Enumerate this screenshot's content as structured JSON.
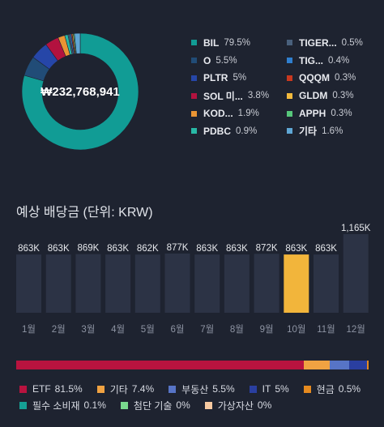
{
  "portfolio": {
    "total": "₩232,768,941"
  },
  "donut": [
    {
      "value": 79.5,
      "color": "#119c95"
    },
    {
      "value": 5.5,
      "color": "#214c77"
    },
    {
      "value": 5.0,
      "color": "#2646a8"
    },
    {
      "value": 3.8,
      "color": "#b3123f"
    },
    {
      "value": 1.9,
      "color": "#e99434"
    },
    {
      "value": 0.9,
      "color": "#28b8a5"
    },
    {
      "value": 0.5,
      "color": "#49607c"
    },
    {
      "value": 0.4,
      "color": "#2f7fcf"
    },
    {
      "value": 0.3,
      "color": "#c8381f"
    },
    {
      "value": 0.3,
      "color": "#f3ba3d"
    },
    {
      "value": 0.3,
      "color": "#57c77b"
    },
    {
      "value": 1.6,
      "color": "#5fa7d5"
    }
  ],
  "holdings": {
    "col1": [
      {
        "name": "BIL",
        "pct": "79.5%",
        "color": "#119c95"
      },
      {
        "name": "O",
        "pct": "5.5%",
        "color": "#214c77"
      },
      {
        "name": "PLTR",
        "pct": "5%",
        "color": "#2646a8"
      },
      {
        "name": "SOL 미...",
        "pct": "3.8%",
        "color": "#b3123f"
      },
      {
        "name": "KOD...",
        "pct": "1.9%",
        "color": "#e99434"
      },
      {
        "name": "PDBC",
        "pct": "0.9%",
        "color": "#28b8a5"
      }
    ],
    "col2": [
      {
        "name": "TIGER...",
        "pct": "0.5%",
        "color": "#49607c"
      },
      {
        "name": "TIG...",
        "pct": "0.4%",
        "color": "#2f7fcf"
      },
      {
        "name": "QQQM",
        "pct": "0.3%",
        "color": "#c8381f"
      },
      {
        "name": "GLDM",
        "pct": "0.3%",
        "color": "#f3ba3d"
      },
      {
        "name": "APPH",
        "pct": "0.3%",
        "color": "#57c77b"
      },
      {
        "name": "기타",
        "pct": "1.6%",
        "color": "#5fa7d5"
      }
    ]
  },
  "dividends": {
    "title": "예상 배당금 (단위: KRW)"
  },
  "chart_data": {
    "type": "bar",
    "title": "예상 배당금 (단위: KRW)",
    "categories": [
      "1월",
      "2월",
      "3월",
      "4월",
      "5월",
      "6월",
      "7월",
      "8월",
      "9월",
      "10월",
      "11월",
      "12월"
    ],
    "values": [
      863000,
      863000,
      869000,
      863000,
      862000,
      877000,
      863000,
      863000,
      872000,
      863000,
      863000,
      1165000
    ],
    "value_labels": [
      "863K",
      "863K",
      "869K",
      "863K",
      "862K",
      "877K",
      "863K",
      "863K",
      "872K",
      "863K",
      "863K",
      "1,165K"
    ],
    "highlight_index": 9,
    "bar_color": "#2c3345",
    "highlight_color": "#f2b53b",
    "ylim": [
      0,
      1200000
    ],
    "grid": false
  },
  "allocation": {
    "segments": [
      {
        "value": 81.5,
        "color": "#b8133f"
      },
      {
        "value": 7.4,
        "color": "#f0a242"
      },
      {
        "value": 5.5,
        "color": "#5774c6"
      },
      {
        "value": 5.0,
        "color": "#2a3fa0"
      },
      {
        "value": 0.5,
        "color": "#e58a1f"
      }
    ],
    "rows": [
      [
        {
          "name": "ETF",
          "pct": "81.5%",
          "color": "#b8133f"
        },
        {
          "name": "기타",
          "pct": "7.4%",
          "color": "#f0a242"
        },
        {
          "name": "부동산",
          "pct": "5.5%",
          "color": "#5774c6"
        },
        {
          "name": "IT",
          "pct": "5%",
          "color": "#2a3fa0"
        },
        {
          "name": "현금",
          "pct": "0.5%",
          "color": "#e58a1f"
        }
      ],
      [
        {
          "name": "필수 소비재",
          "pct": "0.1%",
          "color": "#15a095"
        },
        {
          "name": "첨단 기술",
          "pct": "0%",
          "color": "#79d98e"
        },
        {
          "name": "가상자산",
          "pct": "0%",
          "color": "#f6c9a0"
        }
      ]
    ]
  }
}
